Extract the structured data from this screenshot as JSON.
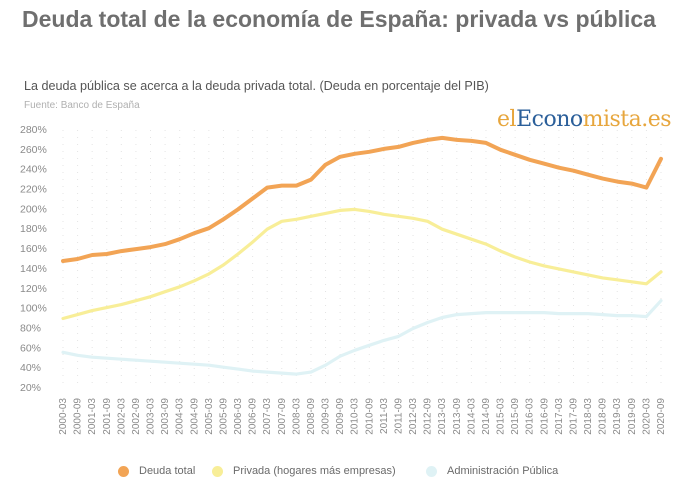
{
  "title": "Deuda total de la economía de España: privada vs pública",
  "subtitle": "La deuda pública se acerca a la deuda privada total. (Deuda en porcentaje del PIB)",
  "source": "Fuente: Banco de España",
  "logo": {
    "part1": "el",
    "part2": "Econo",
    "part3": "mista.es"
  },
  "chart_data": {
    "type": "line",
    "ylim": [
      20,
      280
    ],
    "yticks": [
      20,
      40,
      60,
      80,
      100,
      120,
      140,
      160,
      180,
      200,
      220,
      240,
      260,
      280
    ],
    "ytick_labels": [
      "20%",
      "40%",
      "60%",
      "80%",
      "100%",
      "120%",
      "140%",
      "160%",
      "180%",
      "200%",
      "220%",
      "240%",
      "260%",
      "280%"
    ],
    "categories": [
      "2000-03",
      "2000-09",
      "2001-03",
      "2001-09",
      "2002-03",
      "2002-09",
      "2003-03",
      "2003-09",
      "2004-03",
      "2004-09",
      "2005-03",
      "2005-09",
      "2006-03",
      "2006-09",
      "2007-03",
      "2007-09",
      "2008-03",
      "2008-09",
      "2009-03",
      "2009-09",
      "2010-03",
      "2010-09",
      "2011-03",
      "2011-09",
      "2012-03",
      "2012-09",
      "2013-03",
      "2013-09",
      "2014-03",
      "2014-09",
      "2015-03",
      "2015-09",
      "2016-03",
      "2016-09",
      "2017-03",
      "2017-09",
      "2018-03",
      "2018-09",
      "2019-03",
      "2019-09",
      "2020-03",
      "2020-09"
    ],
    "series": [
      {
        "name": "Deuda total",
        "color": "#f2a455",
        "values": [
          148,
          150,
          154,
          155,
          158,
          160,
          162,
          165,
          170,
          176,
          181,
          190,
          200,
          211,
          222,
          224,
          224,
          230,
          245,
          253,
          256,
          258,
          261,
          263,
          267,
          270,
          272,
          270,
          269,
          267,
          260,
          255,
          250,
          246,
          242,
          239,
          235,
          231,
          228,
          226,
          222,
          251
        ]
      },
      {
        "name": "Privada (hogares más empresas)",
        "color": "#f8ee98",
        "values": [
          90,
          94,
          98,
          101,
          104,
          108,
          112,
          117,
          122,
          128,
          135,
          144,
          155,
          167,
          180,
          188,
          190,
          193,
          196,
          199,
          200,
          198,
          195,
          193,
          191,
          188,
          180,
          175,
          170,
          165,
          158,
          152,
          147,
          143,
          140,
          137,
          134,
          131,
          129,
          127,
          125,
          137
        ]
      },
      {
        "name": "Administración Pública",
        "color": "#dff2f5",
        "values": [
          56,
          53,
          51,
          50,
          49,
          48,
          47,
          46,
          45,
          44,
          43,
          41,
          39,
          37,
          36,
          35,
          34,
          36,
          43,
          52,
          58,
          63,
          68,
          72,
          80,
          86,
          91,
          94,
          95,
          96,
          96,
          96,
          96,
          96,
          95,
          95,
          95,
          94,
          93,
          93,
          92,
          108
        ]
      }
    ]
  }
}
